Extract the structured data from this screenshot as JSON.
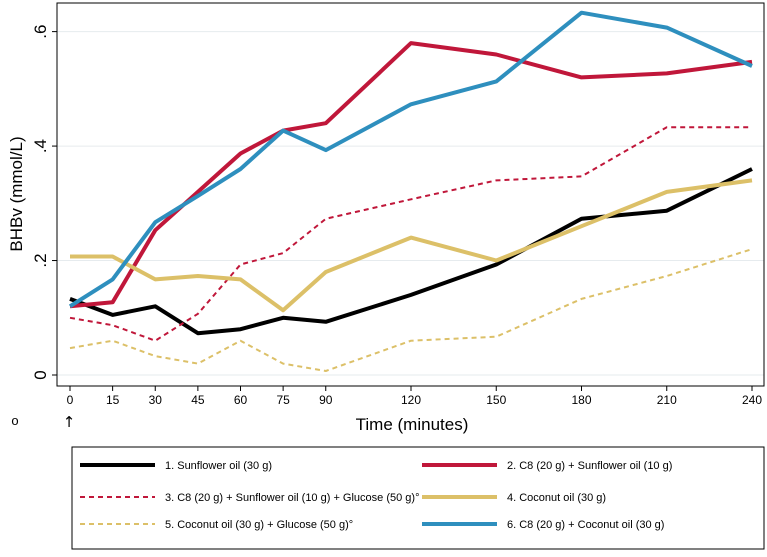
{
  "chart_data": {
    "type": "line",
    "title": "",
    "xlabel": "Time (minutes)",
    "ylabel": "BHBv (mmol/L)",
    "xlim": [
      0,
      240
    ],
    "ylim": [
      0,
      0.65
    ],
    "x": [
      0,
      15,
      30,
      45,
      60,
      75,
      90,
      120,
      150,
      180,
      210,
      240
    ],
    "x_tick_labels": [
      "0",
      "15",
      "30",
      "45",
      "60",
      "75",
      "90",
      "120",
      "150",
      "180",
      "210",
      "240"
    ],
    "y_ticks": [
      0,
      0.2,
      0.4,
      0.6
    ],
    "y_tick_labels": [
      "0",
      ".2",
      ".4",
      ".6"
    ],
    "grid": "horizontal",
    "marker_symbol": "↑",
    "footnote_symbol": "o",
    "legend_position": "bottom",
    "series": [
      {
        "name": "1. Sunflower oil (30 g)",
        "color": "#000000",
        "dash": "solid",
        "values": [
          0.133,
          0.105,
          0.12,
          0.073,
          0.08,
          0.1,
          0.093,
          0.14,
          0.193,
          0.273,
          0.287,
          0.36
        ]
      },
      {
        "name": "2. C8 (20 g) + Sunflower oil (10 g)",
        "color": "#c0173a",
        "dash": "solid",
        "values": [
          0.12,
          0.127,
          0.253,
          0.32,
          0.387,
          0.427,
          0.44,
          0.58,
          0.56,
          0.52,
          0.527,
          0.547
        ]
      },
      {
        "name": "3. C8 (20 g) + Sunflower oil (10 g) + Glucose (50 g)°",
        "color": "#c0173a",
        "dash": "dashed",
        "values": [
          0.1,
          0.087,
          0.06,
          0.107,
          0.193,
          0.213,
          0.273,
          0.307,
          0.34,
          0.347,
          0.433,
          0.433
        ]
      },
      {
        "name": "4. Coconut oil (30 g)",
        "color": "#dcc068",
        "dash": "solid",
        "values": [
          0.207,
          0.207,
          0.167,
          0.173,
          0.167,
          0.113,
          0.18,
          0.24,
          0.2,
          0.26,
          0.32,
          0.34
        ]
      },
      {
        "name": "5. Coconut oil (30 g) + Glucose (50 g)°",
        "color": "#dcc068",
        "dash": "dashed",
        "values": [
          0.047,
          0.06,
          0.033,
          0.02,
          0.06,
          0.02,
          0.007,
          0.06,
          0.067,
          0.133,
          0.173,
          0.22
        ]
      },
      {
        "name": "6. C8 (20 g) + Coconut oil (30 g)",
        "color": "#2e8fbe",
        "dash": "solid",
        "values": [
          0.12,
          0.167,
          0.267,
          0.313,
          0.36,
          0.427,
          0.393,
          0.473,
          0.513,
          0.633,
          0.607,
          0.54
        ]
      }
    ]
  }
}
